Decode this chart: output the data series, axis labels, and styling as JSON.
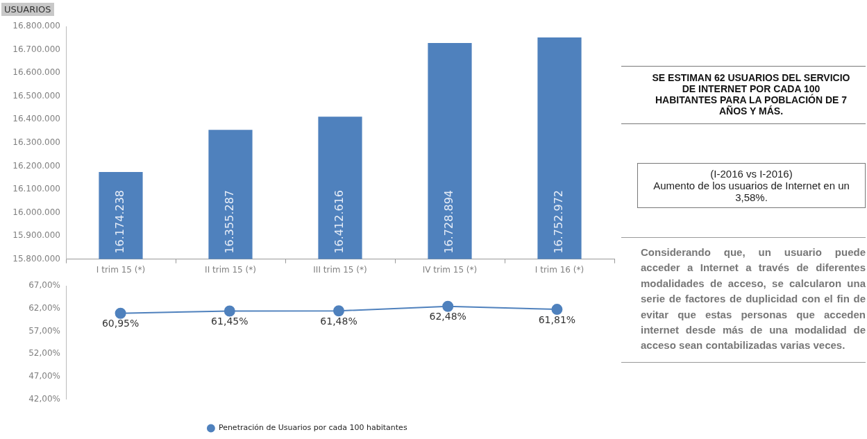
{
  "chart_data": [
    {
      "type": "bar",
      "ylabel": "USUARIOS",
      "categories": [
        "I trim 15 (*)",
        "II trim 15 (*)",
        "III trim 15 (*)",
        "IV trim 15 (*)",
        "I trim 16 (*)"
      ],
      "values": [
        16174238,
        16355287,
        16412616,
        16728894,
        16752972
      ],
      "value_labels": [
        "16.174.238",
        "16.355.287",
        "16.412.616",
        "16.728.894",
        "16.752.972"
      ],
      "color": "#4f81bd",
      "ylim": [
        15800000,
        16800000
      ],
      "yticks": [
        {
          "value": 15800000,
          "label": "15.800.000"
        },
        {
          "value": 15900000,
          "label": "15.900.000"
        },
        {
          "value": 16000000,
          "label": "16.000.000"
        },
        {
          "value": 16100000,
          "label": "16.100.000"
        },
        {
          "value": 16200000,
          "label": "16.200.000"
        },
        {
          "value": 16300000,
          "label": "16.300.000"
        },
        {
          "value": 16400000,
          "label": "16.400.000"
        },
        {
          "value": 16500000,
          "label": "16.500.000"
        },
        {
          "value": 16600000,
          "label": "16.600.000"
        },
        {
          "value": 16700000,
          "label": "16.700.000"
        },
        {
          "value": 16800000,
          "label": "16.800.000"
        }
      ]
    },
    {
      "type": "line",
      "categories": [
        null,
        null,
        null,
        null,
        null
      ],
      "legend": "bottom",
      "marker": "circle",
      "series": [
        {
          "name": "Penetración de Usuarios por cada 100 habitantes",
          "color": "#4f81bd",
          "values": [
            60.95,
            61.45,
            61.48,
            62.48,
            61.81
          ],
          "value_labels": [
            "60,95%",
            "61,45%",
            "61,48%",
            "62,48%",
            "61,81%"
          ]
        }
      ],
      "ylim": [
        42,
        67
      ],
      "yticks": [
        {
          "value": 42,
          "label": "42,00%"
        },
        {
          "value": 47,
          "label": "47,00%"
        },
        {
          "value": 52,
          "label": "52,00%"
        },
        {
          "value": 57,
          "label": "57,00%"
        },
        {
          "value": 62,
          "label": "62,00%"
        },
        {
          "value": 67,
          "label": "67,00%"
        }
      ]
    },
    {
      "type": "other",
      "annotations": [
        "SE ESTIMAN 62 USUARIOS DEL SERVICIO DE INTERNET POR CADA 100 HABITANTES PARA LA POBLACIÓN DE 7 AÑOS Y MÁS.",
        "(I-2016 vs I-2016)\nAumento de los usuarios de Internet en un 3,58%.",
        "Considerando que, un usuario puede acceder a Internet a través de diferentes modalidades de acceso, se calcularon una serie de factores de duplicidad con el fin de evitar que estas personas que acceden internet desde más de una modalidad de acceso sean contabilizadas varias veces."
      ]
    }
  ]
}
